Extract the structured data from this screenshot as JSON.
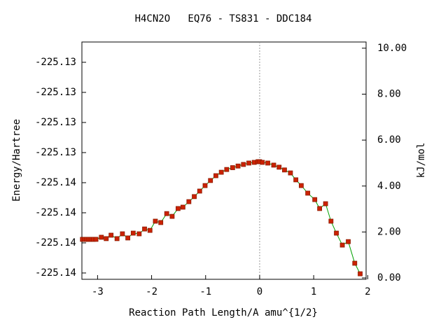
{
  "chart_data": {
    "type": "line",
    "title": "H4CN2O   EQ76 - TS831 - DDC184",
    "xlabel": "Reaction Path Length/A amu^{1/2}",
    "ylabel": "Energy/Hartree",
    "y2label": "kJ/mol",
    "xlim": [
      -3.29,
      1.97
    ],
    "xticks": [
      -3,
      -2,
      -1,
      0,
      1,
      2
    ],
    "ylim": [
      -225.136905,
      -225.132963
    ],
    "yticks": [
      {
        "value": -225.1368,
        "label": "-225.14"
      },
      {
        "value": -225.1363,
        "label": "-225.14"
      },
      {
        "value": -225.1358,
        "label": "-225.14"
      },
      {
        "value": -225.1353,
        "label": "-225.14"
      },
      {
        "value": -225.1348,
        "label": "-225.13"
      },
      {
        "value": -225.1343,
        "label": "-225.13"
      },
      {
        "value": -225.1338,
        "label": "-225.13"
      },
      {
        "value": -225.1333,
        "label": "-225.13"
      }
    ],
    "y2lim": [
      -0.06,
      10.27
    ],
    "y2ticks": [
      {
        "value": 0,
        "label": "0.00"
      },
      {
        "value": 2,
        "label": "2.00"
      },
      {
        "value": 4,
        "label": "4.00"
      },
      {
        "value": 6,
        "label": "6.00"
      },
      {
        "value": 8,
        "label": "8.00"
      },
      {
        "value": 10,
        "label": "10.00"
      }
    ],
    "vline_x": 0,
    "x": [
      -3.28,
      -3.24,
      -3.2,
      -3.16,
      -3.12,
      -3.08,
      -3.03,
      -2.93,
      -2.84,
      -2.75,
      -2.64,
      -2.54,
      -2.44,
      -2.34,
      -2.23,
      -2.13,
      -2.03,
      -1.93,
      -1.83,
      -1.72,
      -1.62,
      -1.51,
      -1.42,
      -1.31,
      -1.21,
      -1.11,
      -1.01,
      -0.91,
      -0.81,
      -0.71,
      -0.61,
      -0.5,
      -0.4,
      -0.3,
      -0.2,
      -0.1,
      -0.03,
      0.0,
      0.05,
      0.15,
      0.26,
      0.36,
      0.46,
      0.57,
      0.67,
      0.77,
      0.89,
      1.02,
      1.11,
      1.22,
      1.32,
      1.42,
      1.53,
      1.64,
      1.76,
      1.86
    ],
    "series": [
      {
        "name": "kJ/mol",
        "axis": "y2",
        "color": "#00a000",
        "marker_color": "#cc2200",
        "values": [
          1.68,
          1.68,
          1.68,
          1.68,
          1.68,
          1.68,
          1.68,
          1.77,
          1.71,
          1.86,
          1.71,
          1.92,
          1.74,
          1.95,
          1.92,
          2.13,
          2.07,
          2.47,
          2.41,
          2.8,
          2.68,
          3.02,
          3.08,
          3.32,
          3.54,
          3.78,
          4.02,
          4.24,
          4.45,
          4.6,
          4.72,
          4.8,
          4.87,
          4.94,
          5.0,
          5.03,
          5.06,
          5.06,
          5.03,
          5.0,
          4.91,
          4.82,
          4.7,
          4.57,
          4.27,
          4.02,
          3.69,
          3.41,
          3.02,
          3.23,
          2.47,
          1.95,
          1.43,
          1.58,
          0.64,
          0.18
        ]
      }
    ]
  }
}
